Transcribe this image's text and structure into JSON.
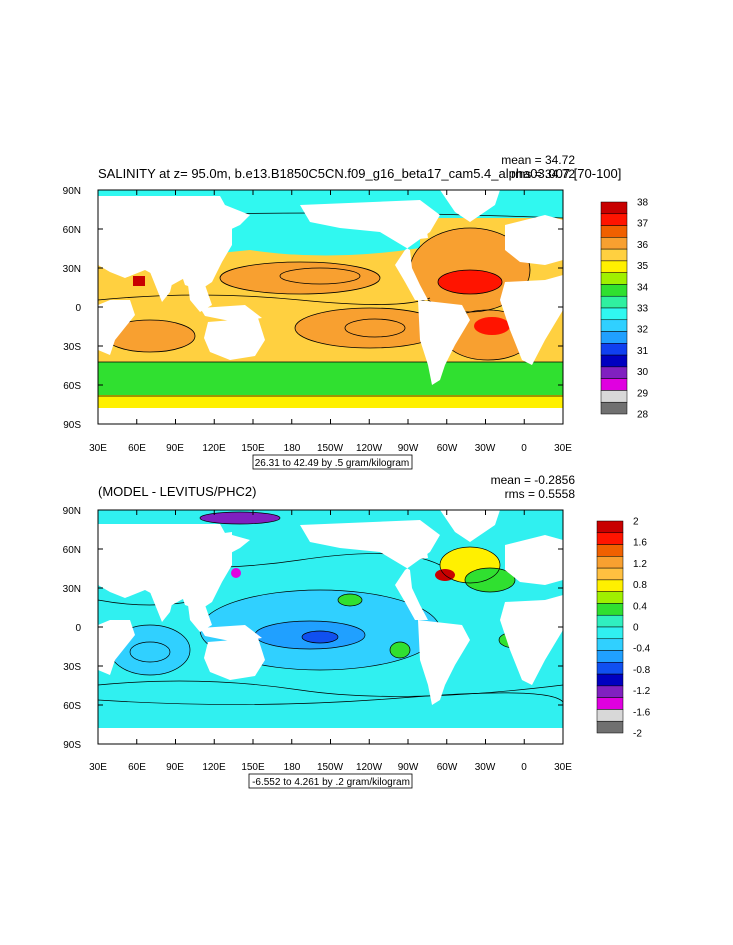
{
  "top_panel": {
    "title": "SALINITY at z=  95.0m, b.e13.B1850C5CN.f09_g16_beta17_cam5.4_alpha03.007 [70-100]",
    "stat1": "mean = 34.72",
    "stat2": "rms = 34.72",
    "contour_info": "26.31 to 42.49 by .5 gram/kilogram",
    "colorbar_labels": [
      "38",
      "37",
      "36",
      "35",
      "34",
      "33",
      "32",
      "31",
      "30",
      "29",
      "28"
    ],
    "colorbar_colors": [
      "#c80000",
      "#ff1400",
      "#f06000",
      "#f8a030",
      "#ffd040",
      "#fff000",
      "#a0f000",
      "#30e030",
      "#30f0a0",
      "#30f8f0",
      "#30d0ff",
      "#20a0ff",
      "#1040f0",
      "#0000c0",
      "#8020c0",
      "#e000e0",
      "#d8d8d8",
      "#707070"
    ]
  },
  "bottom_panel": {
    "title": "(MODEL - LEVITUS/PHC2)",
    "stat1": "mean = -0.2856",
    "stat2": "rms = 0.5558",
    "contour_info": "-6.552 to 4.261 by .2 gram/kilogram",
    "colorbar_labels": [
      "2",
      "1.6",
      "1.2",
      "0.8",
      "0.4",
      "0",
      "-0.4",
      "-0.8",
      "-1.2",
      "-1.6",
      "-2"
    ],
    "colorbar_colors": [
      "#c80000",
      "#ff1400",
      "#f06000",
      "#f8a030",
      "#ffc040",
      "#fff000",
      "#a0f000",
      "#30e030",
      "#30f0c0",
      "#30f0f0",
      "#30d0ff",
      "#20a0ff",
      "#1050f0",
      "#0000c0",
      "#8020c0",
      "#e000e0",
      "#d8d8d8",
      "#707070"
    ]
  },
  "axes": {
    "lat_ticks": [
      "90N",
      "60N",
      "30N",
      "0",
      "30S",
      "60S",
      "90S"
    ],
    "lon_ticks": [
      "30E",
      "60E",
      "90E",
      "120E",
      "150E",
      "180",
      "150W",
      "120W",
      "90W",
      "60W",
      "30W",
      "0",
      "30E"
    ]
  },
  "ocean_colors": {
    "top": {
      "background": "#ffd040",
      "north": "#30f8f0",
      "southern_band": "#30e030",
      "antarctic_edge": "#fff000",
      "subtropical_high": "#f8a030",
      "atlantic_max": "#ff1400",
      "mediterranean": "#c80000"
    },
    "bottom": {
      "background": "#30f0f0",
      "light": "#30d0ff",
      "pacific_neg": "#20a0ff",
      "pacific_min": "#1050f0",
      "positive_patch": "#30e030",
      "atlantic_pos": "#fff000",
      "gulf_stream": "#c80000",
      "arctic_min": "#8020c0",
      "hudson": "#e000e0"
    }
  }
}
